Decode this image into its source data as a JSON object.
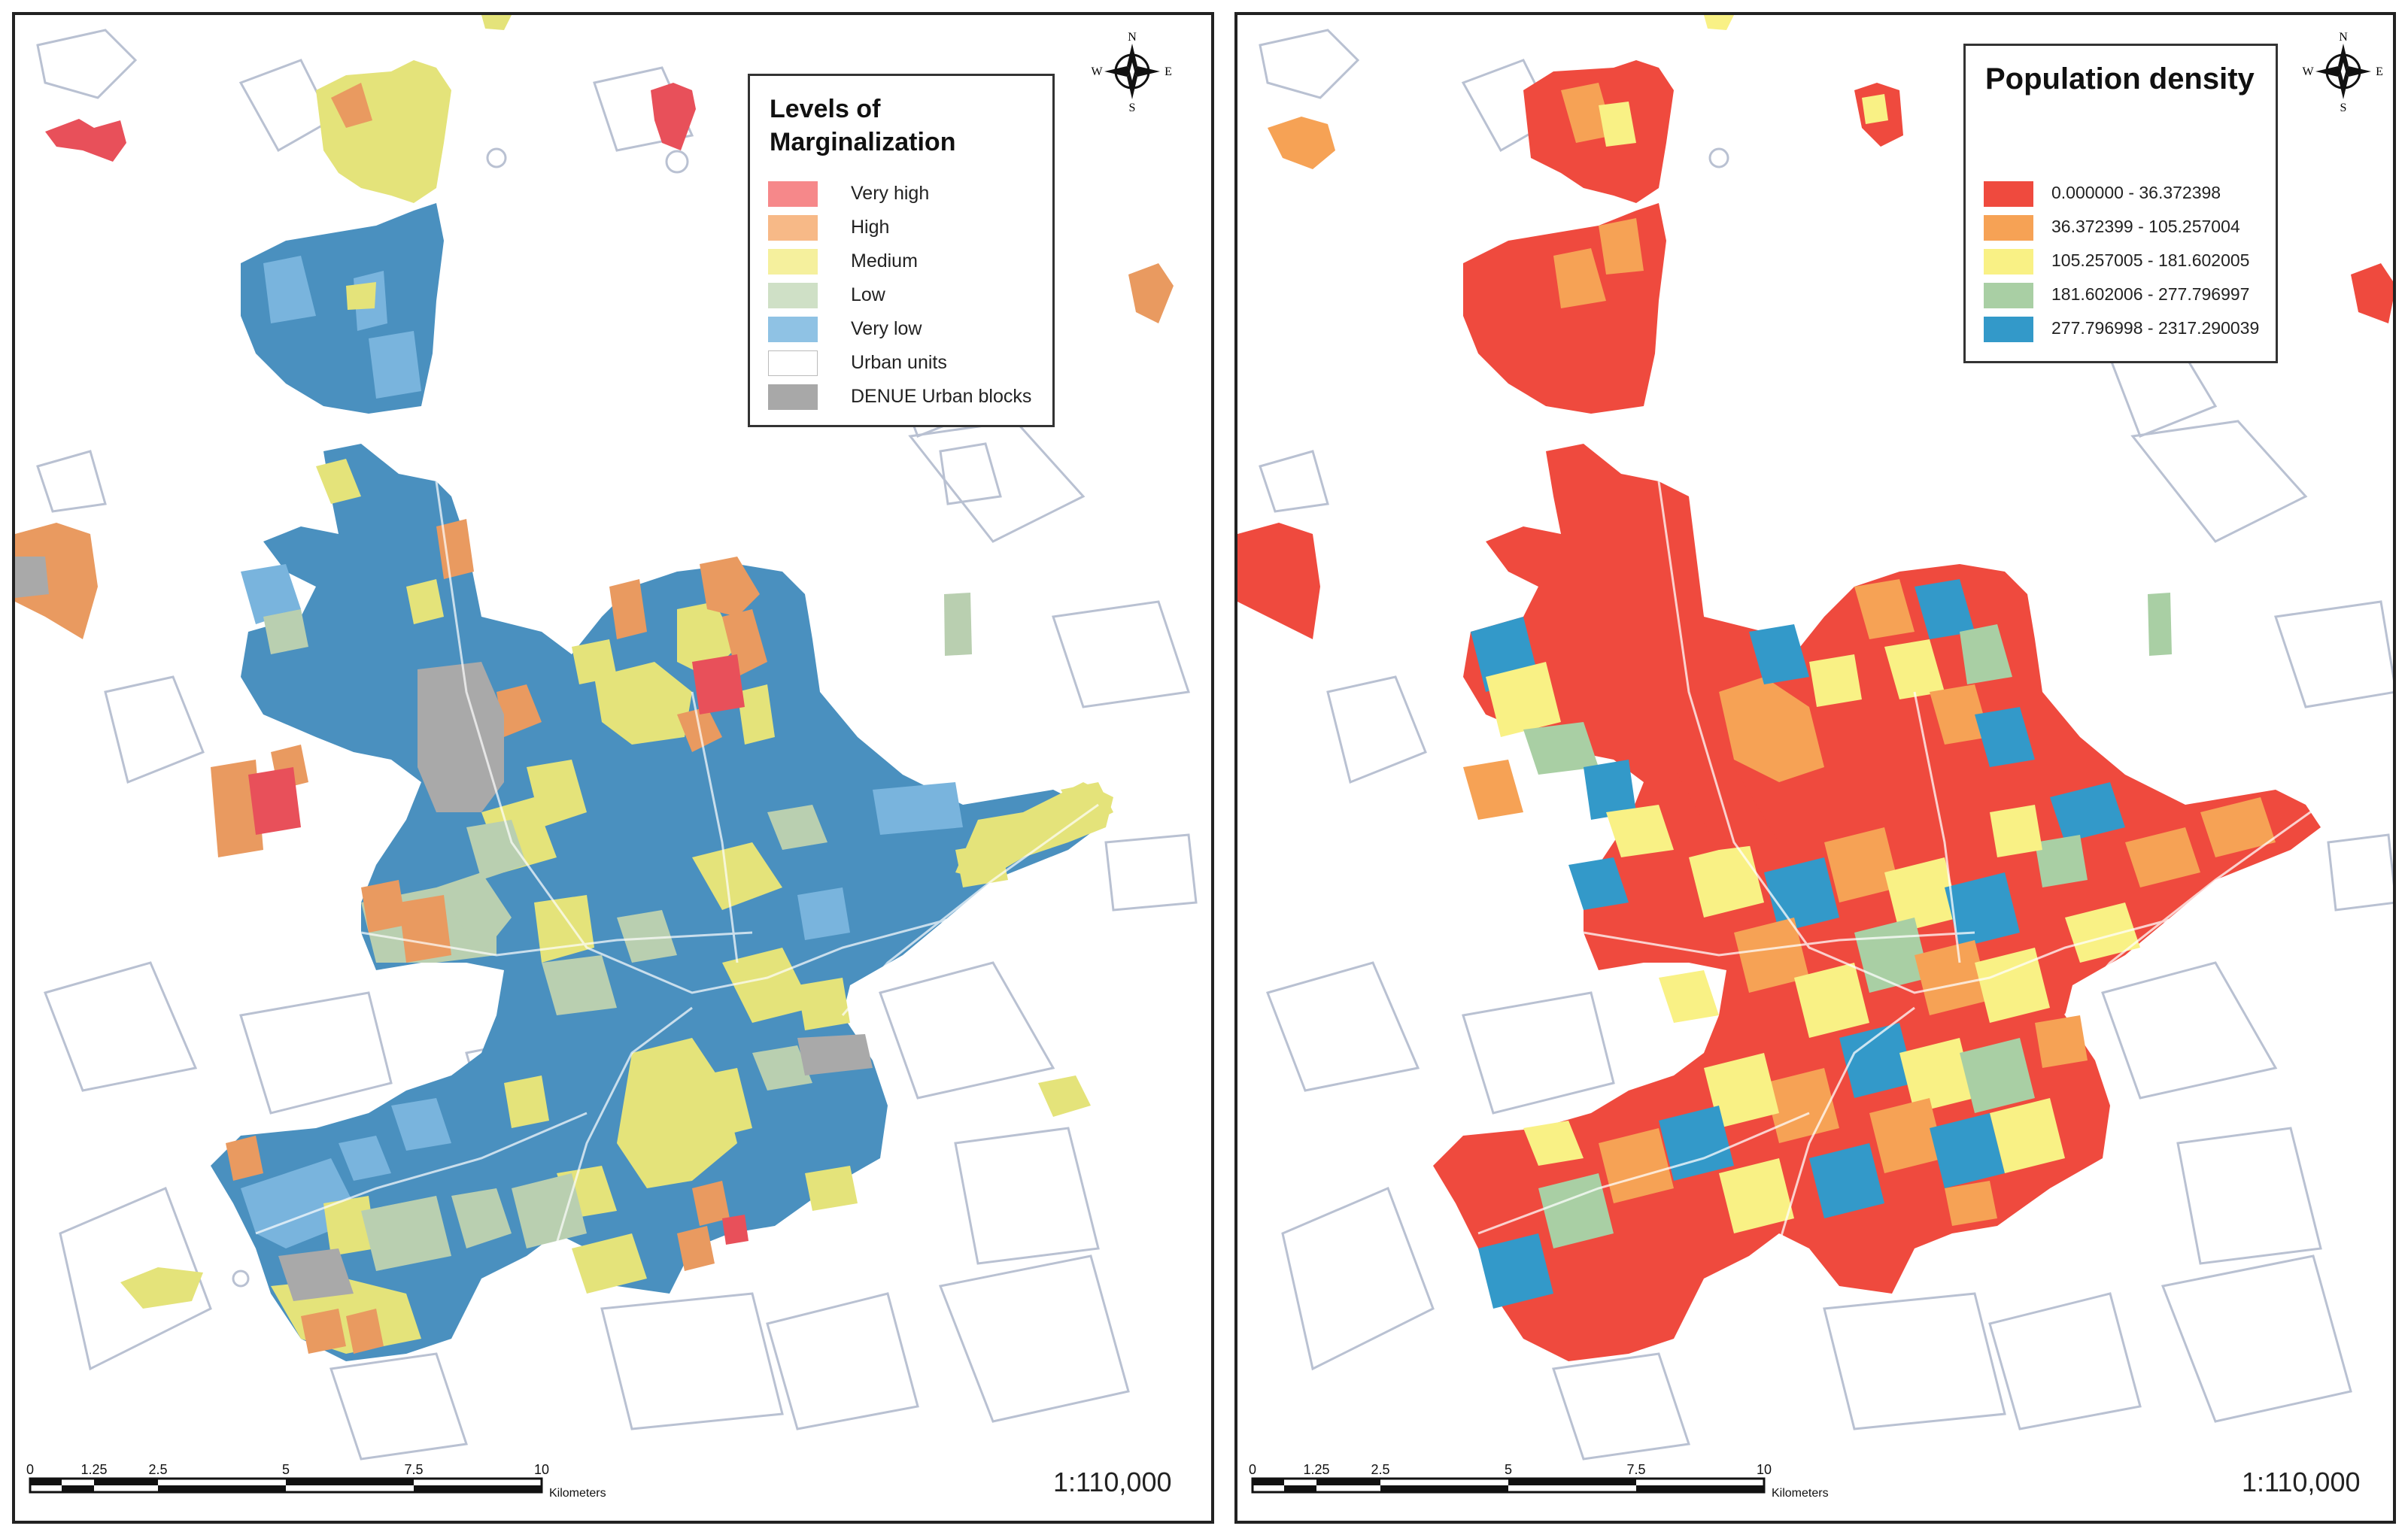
{
  "left_map": {
    "legend": {
      "title": "Levels of Marginalization",
      "items": [
        {
          "label": "Very high",
          "color": "#f6888a"
        },
        {
          "label": "High",
          "color": "#f7b987"
        },
        {
          "label": "Medium",
          "color": "#f5f09d"
        },
        {
          "label": "Low",
          "color": "#cfe0c6"
        },
        {
          "label": "Very low",
          "color": "#8fc2e4"
        },
        {
          "label": "Urban units",
          "color": "#ffffff"
        },
        {
          "label": "DENUE Urban blocks",
          "color": "#a8a8a8"
        }
      ]
    },
    "compass": {
      "n": "N",
      "s": "S",
      "e": "E",
      "w": "W"
    },
    "scale": {
      "ticks": [
        "0",
        "1.25",
        "2.5",
        "5",
        "7.5",
        "10"
      ],
      "unit": "Kilometers",
      "ratio": "1:110,000"
    }
  },
  "right_map": {
    "legend": {
      "title": "Population density",
      "items": [
        {
          "label": "0.000000 - 36.372398",
          "color": "#ef4a3e"
        },
        {
          "label": "36.372399 - 105.257004",
          "color": "#f6a255"
        },
        {
          "label": "105.257005 - 181.602005",
          "color": "#f9f185"
        },
        {
          "label": "181.602006 - 277.796997",
          "color": "#a9cfa4"
        },
        {
          "label": "277.796998 - 2317.290039",
          "color": "#3399c9"
        }
      ]
    },
    "compass": {
      "n": "N",
      "s": "S",
      "e": "E",
      "w": "W"
    },
    "scale": {
      "ticks": [
        "0",
        "1.25",
        "2.5",
        "5",
        "7.5",
        "10"
      ],
      "unit": "Kilometers",
      "ratio": "1:110,000"
    }
  },
  "colors": {
    "marg_very_high": "#e8505a",
    "marg_high": "#e99a60",
    "marg_medium": "#e4e37a",
    "marg_low": "#b9cfb0",
    "marg_very_low": "#4a90bf",
    "marg_very_low_light": "#79b4dd",
    "denue": "#a9a9a9",
    "dens_red": "#ef4a3e",
    "dens_orange": "#f6a255",
    "dens_yellow": "#f9f185",
    "dens_green": "#a9cfa4",
    "dens_blue": "#3399c9",
    "outline": "#b9c1d2"
  }
}
